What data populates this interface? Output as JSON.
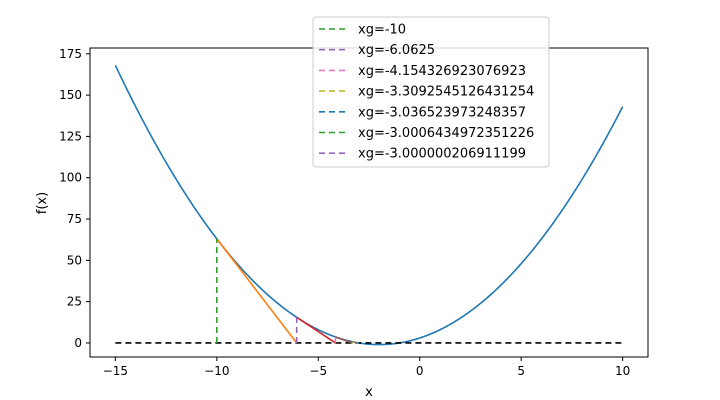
{
  "chart_data": {
    "type": "line",
    "title": "",
    "xlabel": "x",
    "ylabel": "f(x)",
    "xlim": [
      -16.25,
      11.25
    ],
    "ylim": [
      -8.5,
      178.5
    ],
    "x_ticks": [
      -15,
      -10,
      -5,
      0,
      5,
      10
    ],
    "x_tick_labels": [
      "−15",
      "−10",
      "−5",
      "0",
      "5",
      "10"
    ],
    "y_ticks": [
      0,
      25,
      50,
      75,
      100,
      125,
      150,
      175
    ],
    "y_tick_labels": [
      "0",
      "25",
      "50",
      "75",
      "100",
      "125",
      "150",
      "175"
    ],
    "grid": false,
    "legend_position": "top-center",
    "curve": {
      "function": "x^2 + 4x + 3",
      "x_range": [
        -15,
        10
      ],
      "color": "#1f77b4"
    },
    "zero_line": {
      "x": [
        -15,
        10
      ],
      "y": [
        0,
        0
      ],
      "color": "#000000",
      "style": "dashed"
    },
    "tangent_segments": [
      {
        "x": [
          -10,
          -6.0625
        ],
        "y": [
          63,
          0
        ],
        "color": "#ff7f0e"
      },
      {
        "x": [
          -6.0625,
          -4.154326923076923
        ],
        "y": [
          15.50390625,
          0
        ],
        "color": "#d62728"
      },
      {
        "x": [
          -4.154326923076923,
          -3.3092545126431254
        ],
        "y": [
          3.64,
          0
        ],
        "color": "#8c564b"
      },
      {
        "x": [
          -3.3092545126431254,
          -3.036523973248357
        ],
        "y": [
          0.714,
          0
        ],
        "color": "#7f7f7f"
      },
      {
        "x": [
          -3.036523973248357,
          -3.0006434972351226
        ],
        "y": [
          0.0744,
          0
        ],
        "color": "#17becf"
      }
    ],
    "series": [
      {
        "name": "xg=-10",
        "x": [
          -10,
          -10
        ],
        "y": [
          0,
          63
        ],
        "color": "#2ca02c",
        "style": "dashed"
      },
      {
        "name": "xg=-6.0625",
        "x": [
          -6.0625,
          -6.0625
        ],
        "y": [
          0,
          15.50390625
        ],
        "color": "#9467bd",
        "style": "dashed"
      },
      {
        "name": "xg=-4.154326923076923",
        "x": [
          -4.154326923076923,
          -4.154326923076923
        ],
        "y": [
          0,
          3.64
        ],
        "color": "#e377c2",
        "style": "dashed"
      },
      {
        "name": "xg=-3.3092545126431254",
        "x": [
          -3.3092545126431254,
          -3.3092545126431254
        ],
        "y": [
          0,
          0.714
        ],
        "color": "#bcbd22",
        "style": "dashed"
      },
      {
        "name": "xg=-3.036523973248357",
        "x": [
          -3.036523973248357,
          -3.036523973248357
        ],
        "y": [
          0,
          0.0744
        ],
        "color": "#1f77b4",
        "style": "dashed"
      },
      {
        "name": "xg=-3.0006434972351226",
        "x": [
          -3.0006434972351226,
          -3.0006434972351226
        ],
        "y": [
          0,
          0.0013
        ],
        "color": "#2ca02c",
        "style": "dashed"
      },
      {
        "name": "xg=-3.000000206911199",
        "x": [
          -3.000000206911199,
          -3.000000206911199
        ],
        "y": [
          0,
          0
        ],
        "color": "#9467bd",
        "style": "dashed"
      }
    ]
  }
}
